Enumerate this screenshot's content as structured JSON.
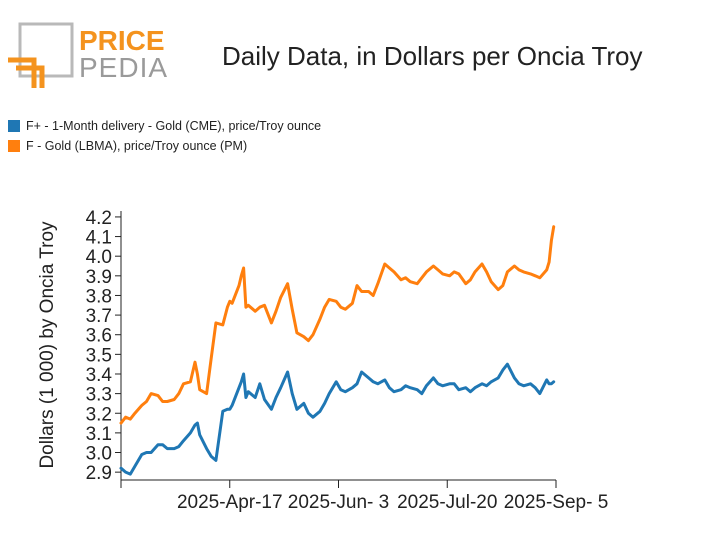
{
  "brand": {
    "line1": "PRICE",
    "line2": "PEDIA"
  },
  "chart_data": {
    "type": "line",
    "title": "Daily Data, in Dollars per Oncia Troy",
    "ylabel": "Dollars (1 000) by Oncia Troy",
    "xlabel": "",
    "ylim": [
      2.86,
      4.22
    ],
    "yticks": [
      "2.9",
      "3.0",
      "3.1",
      "3.2",
      "3.3",
      "3.4",
      "3.5",
      "3.6",
      "3.7",
      "3.8",
      "3.9",
      "4.0",
      "4.1",
      "4.2"
    ],
    "xlim": [
      "2025-03-01",
      "2025-09-05"
    ],
    "xticks": [
      "2025-Apr-17",
      "2025-Jun- 3",
      "2025-Jul-20",
      "2025-Sep- 5"
    ],
    "xtick_dates": [
      "2025-04-17",
      "2025-06-03",
      "2025-07-20",
      "2025-09-05"
    ],
    "legend_position": "top-left",
    "grid": false,
    "series": [
      {
        "name": "F+ - 1-Month delivery - Gold (CME), price/Troy ounce",
        "color": "#1f77b4",
        "x": [
          "2025-03-01",
          "2025-03-03",
          "2025-03-05",
          "2025-03-07",
          "2025-03-10",
          "2025-03-12",
          "2025-03-14",
          "2025-03-17",
          "2025-03-19",
          "2025-03-21",
          "2025-03-24",
          "2025-03-26",
          "2025-03-28",
          "2025-03-31",
          "2025-04-02",
          "2025-04-03",
          "2025-04-04",
          "2025-04-07",
          "2025-04-09",
          "2025-04-11",
          "2025-04-14",
          "2025-04-16",
          "2025-04-17",
          "2025-04-18",
          "2025-04-21",
          "2025-04-22",
          "2025-04-23",
          "2025-04-24",
          "2025-04-25",
          "2025-04-28",
          "2025-04-30",
          "2025-05-02",
          "2025-05-05",
          "2025-05-07",
          "2025-05-09",
          "2025-05-12",
          "2025-05-14",
          "2025-05-16",
          "2025-05-19",
          "2025-05-21",
          "2025-05-23",
          "2025-05-26",
          "2025-05-28",
          "2025-05-30",
          "2025-06-02",
          "2025-06-04",
          "2025-06-06",
          "2025-06-09",
          "2025-06-11",
          "2025-06-13",
          "2025-06-16",
          "2025-06-18",
          "2025-06-20",
          "2025-06-23",
          "2025-06-25",
          "2025-06-27",
          "2025-06-30",
          "2025-07-02",
          "2025-07-04",
          "2025-07-07",
          "2025-07-09",
          "2025-07-11",
          "2025-07-14",
          "2025-07-16",
          "2025-07-18",
          "2025-07-21",
          "2025-07-23",
          "2025-07-25",
          "2025-07-28",
          "2025-07-30",
          "2025-08-01",
          "2025-08-04",
          "2025-08-06",
          "2025-08-08",
          "2025-08-11",
          "2025-08-13",
          "2025-08-15",
          "2025-08-18",
          "2025-08-20",
          "2025-08-22",
          "2025-08-25",
          "2025-08-27",
          "2025-08-29",
          "2025-09-01",
          "2025-09-02",
          "2025-09-03",
          "2025-09-04"
        ],
        "y": [
          2.92,
          2.9,
          2.89,
          2.93,
          2.99,
          3.0,
          3.0,
          3.04,
          3.04,
          3.02,
          3.02,
          3.03,
          3.06,
          3.1,
          3.14,
          3.15,
          3.09,
          3.02,
          2.98,
          2.96,
          3.21,
          3.22,
          3.22,
          3.24,
          3.33,
          3.36,
          3.4,
          3.28,
          3.31,
          3.28,
          3.35,
          3.27,
          3.22,
          3.28,
          3.33,
          3.41,
          3.3,
          3.22,
          3.25,
          3.2,
          3.18,
          3.21,
          3.25,
          3.3,
          3.36,
          3.32,
          3.31,
          3.33,
          3.35,
          3.41,
          3.38,
          3.36,
          3.35,
          3.37,
          3.33,
          3.31,
          3.32,
          3.34,
          3.33,
          3.32,
          3.3,
          3.34,
          3.38,
          3.35,
          3.34,
          3.35,
          3.35,
          3.32,
          3.33,
          3.31,
          3.33,
          3.35,
          3.34,
          3.36,
          3.38,
          3.42,
          3.45,
          3.38,
          3.35,
          3.34,
          3.35,
          3.33,
          3.3,
          3.37,
          3.35,
          3.35,
          3.36
        ]
      },
      {
        "name": "F - Gold (LBMA), price/Troy ounce (PM)",
        "color": "#ff7f0e",
        "x": [
          "2025-03-01",
          "2025-03-03",
          "2025-03-05",
          "2025-03-07",
          "2025-03-10",
          "2025-03-12",
          "2025-03-14",
          "2025-03-17",
          "2025-03-19",
          "2025-03-21",
          "2025-03-24",
          "2025-03-26",
          "2025-03-28",
          "2025-03-31",
          "2025-04-02",
          "2025-04-03",
          "2025-04-04",
          "2025-04-07",
          "2025-04-09",
          "2025-04-11",
          "2025-04-14",
          "2025-04-16",
          "2025-04-17",
          "2025-04-18",
          "2025-04-21",
          "2025-04-22",
          "2025-04-23",
          "2025-04-24",
          "2025-04-25",
          "2025-04-28",
          "2025-04-30",
          "2025-05-02",
          "2025-05-05",
          "2025-05-07",
          "2025-05-09",
          "2025-05-12",
          "2025-05-14",
          "2025-05-16",
          "2025-05-19",
          "2025-05-21",
          "2025-05-23",
          "2025-05-26",
          "2025-05-28",
          "2025-05-30",
          "2025-06-02",
          "2025-06-04",
          "2025-06-06",
          "2025-06-09",
          "2025-06-11",
          "2025-06-13",
          "2025-06-16",
          "2025-06-18",
          "2025-06-20",
          "2025-06-23",
          "2025-06-25",
          "2025-06-27",
          "2025-06-30",
          "2025-07-02",
          "2025-07-04",
          "2025-07-07",
          "2025-07-09",
          "2025-07-11",
          "2025-07-14",
          "2025-07-16",
          "2025-07-18",
          "2025-07-21",
          "2025-07-23",
          "2025-07-25",
          "2025-07-28",
          "2025-07-30",
          "2025-08-01",
          "2025-08-04",
          "2025-08-06",
          "2025-08-08",
          "2025-08-11",
          "2025-08-13",
          "2025-08-15",
          "2025-08-18",
          "2025-08-20",
          "2025-08-22",
          "2025-08-25",
          "2025-08-27",
          "2025-08-29",
          "2025-09-01",
          "2025-09-02",
          "2025-09-03",
          "2025-09-04"
        ],
        "y": [
          3.15,
          3.18,
          3.17,
          3.2,
          3.24,
          3.26,
          3.3,
          3.29,
          3.26,
          3.26,
          3.27,
          3.3,
          3.35,
          3.36,
          3.46,
          3.4,
          3.32,
          3.3,
          3.48,
          3.66,
          3.65,
          3.74,
          3.77,
          3.76,
          3.85,
          3.9,
          3.94,
          3.74,
          3.75,
          3.72,
          3.74,
          3.75,
          3.66,
          3.72,
          3.79,
          3.86,
          3.73,
          3.61,
          3.59,
          3.57,
          3.6,
          3.68,
          3.74,
          3.78,
          3.77,
          3.74,
          3.73,
          3.76,
          3.85,
          3.82,
          3.82,
          3.8,
          3.86,
          3.96,
          3.94,
          3.92,
          3.88,
          3.89,
          3.87,
          3.86,
          3.89,
          3.92,
          3.95,
          3.93,
          3.91,
          3.9,
          3.92,
          3.91,
          3.86,
          3.88,
          3.92,
          3.96,
          3.92,
          3.87,
          3.83,
          3.85,
          3.92,
          3.95,
          3.93,
          3.92,
          3.91,
          3.9,
          3.89,
          3.93,
          3.97,
          4.08,
          4.15
        ]
      }
    ]
  }
}
